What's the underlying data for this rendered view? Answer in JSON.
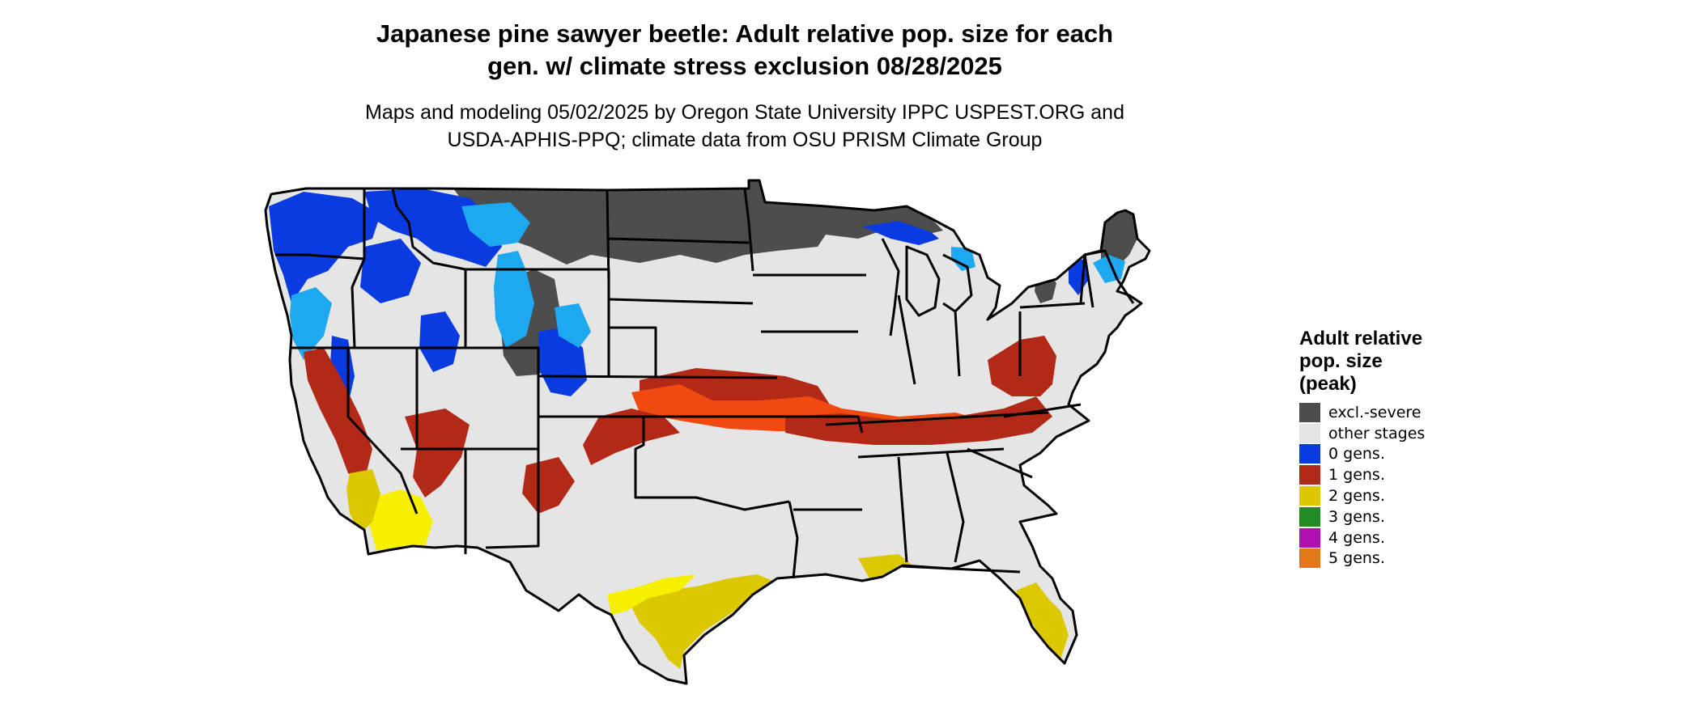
{
  "title_lines": [
    "Japanese pine sawyer beetle: Adult relative pop. size for each",
    "gen. w/ climate stress exclusion 08/28/2025"
  ],
  "subtitle_lines": [
    "Maps and modeling 05/02/2025 by Oregon State University IPPC USPEST.ORG and",
    "USDA-APHIS-PPQ; climate data from OSU PRISM Climate Group"
  ],
  "legend": {
    "title_lines": [
      "Adult relative",
      "pop. size",
      "(peak)"
    ],
    "items": [
      {
        "label": "excl.-severe",
        "color": "#4d4d4d"
      },
      {
        "label": "other stages",
        "color": "#e5e5e5"
      },
      {
        "label": "0 gens.",
        "color": "#0a3be0"
      },
      {
        "label": "1 gens.",
        "color": "#b22a17"
      },
      {
        "label": "2 gens.",
        "color": "#dcc800"
      },
      {
        "label": "3 gens.",
        "color": "#228b22"
      },
      {
        "label": "4 gens.",
        "color": "#b010b0"
      },
      {
        "label": "5 gens.",
        "color": "#e07818"
      }
    ]
  },
  "map": {
    "region": "Contiguous United States",
    "colors": {
      "background": "#e5e5e5",
      "excluded": "#4d4d4d",
      "zero_gens": "#0a3be0",
      "zero_gens_light": "#1ea8f0",
      "one_gen": "#b22a17",
      "one_gen_bright": "#f04a10",
      "two_gens": "#dcc800",
      "two_gens_bright": "#f6f000",
      "border": "#000000"
    }
  }
}
